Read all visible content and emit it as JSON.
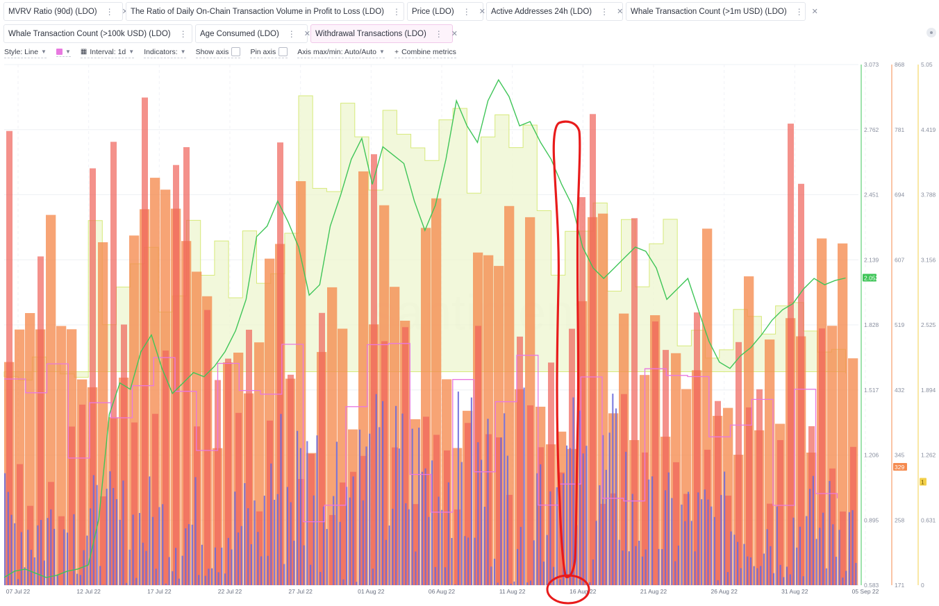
{
  "metrics_row1": [
    {
      "label": "MVRV Ratio (90d) (LDO)",
      "color": "#c9e25a",
      "width": 172
    },
    {
      "label": "The Ratio of Daily On-Chain Transaction Volume in Profit to Loss (LDO)",
      "color": "#f0625a",
      "width": 401
    },
    {
      "label": "Price (LDO)",
      "color": "#3fc558",
      "width": 110
    },
    {
      "label": "Active Addresses 24h (LDO)",
      "color": "#f58a4e",
      "width": 197
    },
    {
      "label": "Whale Transaction Count (>1m USD) (LDO)",
      "color": "#f3d04a",
      "width": 259
    }
  ],
  "metrics_row2": [
    {
      "label": "Whale Transaction Count (>100k USD) (LDO)",
      "color": "#6b6bdc",
      "width": 272
    },
    {
      "label": "Age Consumed (LDO)",
      "color": "#7a4f3a",
      "width": 162
    },
    {
      "label": "Withdrawal Transactions (LDO)",
      "color": "#e879e0",
      "width": 205
    }
  ],
  "toolbar": {
    "style": "Style: Line",
    "interval": "Interval: 1d",
    "indicators": "Indicators:",
    "show_axis": "Show axis",
    "pin_axis": "Pin axis",
    "axis_mode": "Axis max/min: Auto/Auto",
    "combine": "Combine metrics"
  },
  "chart_data": {
    "type": "line",
    "x_ticks": [
      "07 Jul 22",
      "12 Jul 22",
      "17 Jul 22",
      "22 Jul 22",
      "27 Jul 22",
      "01 Aug 22",
      "06 Aug 22",
      "11 Aug 22",
      "16 Aug 22",
      "21 Aug 22",
      "26 Aug 22",
      "31 Aug 22",
      "05 Sep 22"
    ],
    "axes": [
      {
        "series": "Price (LDO)",
        "color": "#3fc558",
        "ticks": [
          "3.073",
          "2.762",
          "2.451",
          "2.139",
          "1.828",
          "1.517",
          "1.206",
          "0.895",
          "0.583"
        ],
        "badge": "2.052",
        "range": [
          0.583,
          3.073
        ]
      },
      {
        "series": "Active Addresses 24h (LDO)",
        "color": "#f58a4e",
        "ticks": [
          "868",
          "781",
          "694",
          "607",
          "519",
          "432",
          "345",
          "258",
          "171"
        ],
        "badge": "329",
        "range": [
          171,
          868
        ]
      },
      {
        "series": "Whale Transaction Count (>1m USD) (LDO)",
        "color": "#f3d04a",
        "ticks": [
          "5.05",
          "4.419",
          "3.788",
          "3.156",
          "2.525",
          "1.894",
          "1.262",
          "0.631",
          "0"
        ],
        "badge": "1",
        "range": [
          0,
          5.05
        ]
      }
    ],
    "price_series": [
      0.62,
      0.65,
      0.66,
      0.64,
      0.62,
      0.63,
      0.65,
      0.66,
      0.68,
      0.9,
      1.4,
      1.55,
      1.52,
      1.7,
      1.78,
      1.62,
      1.5,
      1.55,
      1.6,
      1.58,
      1.63,
      1.7,
      1.8,
      1.95,
      2.25,
      2.3,
      2.42,
      2.32,
      2.2,
      1.97,
      2.02,
      2.3,
      2.45,
      2.62,
      2.72,
      2.5,
      2.68,
      2.64,
      2.6,
      2.42,
      2.28,
      2.4,
      2.62,
      2.9,
      2.78,
      2.7,
      2.9,
      3.0,
      2.92,
      2.78,
      2.8,
      2.7,
      2.62,
      2.5,
      2.4,
      2.2,
      2.1,
      2.05,
      2.1,
      2.15,
      2.2,
      2.18,
      2.1,
      1.95,
      2.0,
      2.05,
      1.9,
      1.75,
      1.65,
      1.62,
      1.68,
      1.72,
      1.78,
      1.85,
      1.9,
      1.93,
      2.0,
      2.05,
      2.02,
      2.04,
      2.052
    ],
    "annotation": "red hand-drawn circle around 16 Aug 22 marker",
    "watermark": "santiment"
  }
}
